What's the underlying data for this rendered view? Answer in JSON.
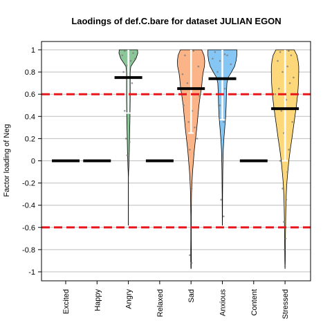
{
  "chart_data": {
    "type": "violin",
    "title": "Laodings of def.C.bare for dataset JULIAN EGON",
    "xlabel": "",
    "ylabel": "Factor loading of Neg",
    "ylim": [
      -1,
      1
    ],
    "yticks": [
      1,
      0.8,
      0.6,
      0.4,
      0.2,
      0,
      -0.2,
      -0.4,
      -0.6,
      -0.8,
      -1
    ],
    "ytick_labels": [
      "1",
      "0.8",
      "0.6",
      "0.4",
      "0.2",
      "0",
      "-0.2",
      "-0.4",
      "-0.6",
      "-0.8",
      "-1"
    ],
    "grid": true,
    "reference_lines": [
      0.6,
      -0.6
    ],
    "reference_line_color": "#e8161b",
    "categories": [
      "Excited",
      "Happy",
      "Angry",
      "Relaxed",
      "Sad",
      "Anxious",
      "Content",
      "Stressed"
    ],
    "means": [
      0,
      0,
      0.75,
      0,
      0.65,
      0.74,
      0,
      0.47
    ],
    "ci": [
      null,
      null,
      [
        0.43,
        1.0
      ],
      null,
      [
        0.25,
        1.0
      ],
      [
        0.37,
        1.0
      ],
      null,
      [
        0.0,
        1.0
      ]
    ],
    "violins": [
      null,
      null,
      {
        "color": "#8cc79a",
        "points": [
          [
            1.0,
            0.6
          ],
          [
            0.97,
            0.62
          ],
          [
            0.92,
            0.5
          ],
          [
            0.88,
            0.3
          ],
          [
            0.85,
            0.16
          ],
          [
            0.8,
            0.12
          ],
          [
            0.72,
            0.12
          ],
          [
            0.65,
            0.12
          ],
          [
            0.55,
            0.12
          ],
          [
            0.45,
            0.11
          ],
          [
            0.35,
            0.1
          ],
          [
            0.25,
            0.08
          ],
          [
            0.15,
            0.07
          ],
          [
            0.08,
            0.06
          ],
          [
            0.0,
            0.04
          ],
          [
            -0.05,
            0.03
          ],
          [
            -0.1,
            0.015
          ],
          [
            -0.15,
            0.006
          ],
          [
            -0.3,
            0.004
          ],
          [
            -0.5,
            0.004
          ],
          [
            -0.58,
            0.003
          ]
        ]
      },
      null,
      {
        "color": "#fbb488",
        "points": [
          [
            1.0,
            0.7
          ],
          [
            0.95,
            0.85
          ],
          [
            0.9,
            0.9
          ],
          [
            0.85,
            0.88
          ],
          [
            0.8,
            0.8
          ],
          [
            0.75,
            0.75
          ],
          [
            0.7,
            0.72
          ],
          [
            0.65,
            0.68
          ],
          [
            0.6,
            0.62
          ],
          [
            0.5,
            0.52
          ],
          [
            0.4,
            0.45
          ],
          [
            0.3,
            0.38
          ],
          [
            0.2,
            0.3
          ],
          [
            0.1,
            0.22
          ],
          [
            0.0,
            0.16
          ],
          [
            -0.1,
            0.1
          ],
          [
            -0.2,
            0.06
          ],
          [
            -0.3,
            0.03
          ],
          [
            -0.5,
            0.015
          ],
          [
            -0.7,
            0.012
          ],
          [
            -0.8,
            0.02
          ],
          [
            -0.9,
            0.02
          ],
          [
            -0.97,
            0.01
          ]
        ]
      },
      {
        "color": "#86c6f4",
        "points": [
          [
            1.0,
            0.95
          ],
          [
            0.95,
            0.95
          ],
          [
            0.9,
            0.9
          ],
          [
            0.85,
            0.8
          ],
          [
            0.8,
            0.6
          ],
          [
            0.75,
            0.38
          ],
          [
            0.7,
            0.3
          ],
          [
            0.65,
            0.28
          ],
          [
            0.6,
            0.27
          ],
          [
            0.5,
            0.25
          ],
          [
            0.4,
            0.22
          ],
          [
            0.3,
            0.16
          ],
          [
            0.2,
            0.1
          ],
          [
            0.1,
            0.06
          ],
          [
            0.0,
            0.04
          ],
          [
            -0.1,
            0.025
          ],
          [
            -0.3,
            0.015
          ],
          [
            -0.45,
            0.01
          ],
          [
            -0.58,
            0.005
          ]
        ]
      },
      null,
      {
        "color": "#fcd87a",
        "points": [
          [
            1.0,
            0.6
          ],
          [
            0.95,
            0.78
          ],
          [
            0.9,
            0.86
          ],
          [
            0.85,
            0.9
          ],
          [
            0.8,
            0.9
          ],
          [
            0.7,
            0.88
          ],
          [
            0.6,
            0.83
          ],
          [
            0.5,
            0.75
          ],
          [
            0.4,
            0.65
          ],
          [
            0.3,
            0.55
          ],
          [
            0.2,
            0.45
          ],
          [
            0.1,
            0.34
          ],
          [
            0.0,
            0.25
          ],
          [
            -0.1,
            0.18
          ],
          [
            -0.2,
            0.12
          ],
          [
            -0.3,
            0.08
          ],
          [
            -0.4,
            0.06
          ],
          [
            -0.5,
            0.045
          ],
          [
            -0.6,
            0.035
          ],
          [
            -0.7,
            0.025
          ],
          [
            -0.8,
            0.018
          ],
          [
            -0.9,
            0.012
          ],
          [
            -0.97,
            0.005
          ]
        ]
      }
    ],
    "jitter_points": [
      [],
      [],
      [
        [
          0.99,
          -0.3
        ],
        [
          0.97,
          0.4
        ],
        [
          0.95,
          -0.5
        ],
        [
          0.9,
          0.2
        ],
        [
          0.86,
          -0.1
        ],
        [
          0.6,
          0.2
        ],
        [
          0.45,
          -0.3
        ],
        [
          0.38,
          0.1
        ],
        [
          0.2,
          -0.2
        ],
        [
          0.17,
          0.1
        ],
        [
          0.05,
          -0.1
        ],
        [
          0.92,
          0.55
        ],
        [
          0.8,
          -0.4
        ],
        [
          0.7,
          0.3
        ]
      ],
      [],
      [
        [
          0.99,
          0.2
        ],
        [
          0.95,
          -0.5
        ],
        [
          0.85,
          0.6
        ],
        [
          0.7,
          -0.3
        ],
        [
          0.6,
          0.4
        ],
        [
          0.5,
          -0.6
        ],
        [
          0.45,
          0.1
        ],
        [
          0.35,
          -0.2
        ],
        [
          0.2,
          0.5
        ],
        [
          0.1,
          -0.1
        ],
        [
          -0.25,
          0.05
        ],
        [
          -0.85,
          -0.1
        ],
        [
          -0.92,
          0.05
        ],
        [
          0.78,
          -0.7
        ],
        [
          0.58,
          0.7
        ],
        [
          0.3,
          0.3
        ]
      ],
      [
        [
          0.98,
          -0.6
        ],
        [
          0.95,
          0.4
        ],
        [
          0.9,
          -0.2
        ],
        [
          0.87,
          0.7
        ],
        [
          0.8,
          -0.4
        ],
        [
          0.65,
          0.2
        ],
        [
          0.5,
          -0.2
        ],
        [
          0.35,
          0.1
        ],
        [
          0.2,
          -0.1
        ],
        [
          0.0,
          0.05
        ],
        [
          -0.35,
          -0.1
        ],
        [
          -0.5,
          0.1
        ],
        [
          0.96,
          0.2
        ],
        [
          0.92,
          -0.8
        ]
      ],
      [],
      [
        [
          0.99,
          0.3
        ],
        [
          0.98,
          -0.4
        ],
        [
          0.95,
          0.5
        ],
        [
          0.9,
          -0.6
        ],
        [
          0.85,
          0.2
        ],
        [
          0.8,
          -0.2
        ],
        [
          0.7,
          0.4
        ],
        [
          0.65,
          -0.5
        ],
        [
          0.55,
          0.1
        ],
        [
          0.45,
          -0.3
        ],
        [
          0.35,
          0.6
        ],
        [
          0.25,
          -0.1
        ],
        [
          0.1,
          0.3
        ],
        [
          0.0,
          -0.4
        ],
        [
          -0.1,
          0.2
        ],
        [
          -0.25,
          -0.2
        ],
        [
          -0.35,
          0.1
        ],
        [
          -0.55,
          -0.1
        ],
        [
          -0.7,
          0.05
        ],
        [
          -0.8,
          -0.05
        ],
        [
          -0.95,
          0.0
        ],
        [
          0.75,
          0.7
        ],
        [
          0.6,
          -0.8
        ]
      ]
    ]
  }
}
